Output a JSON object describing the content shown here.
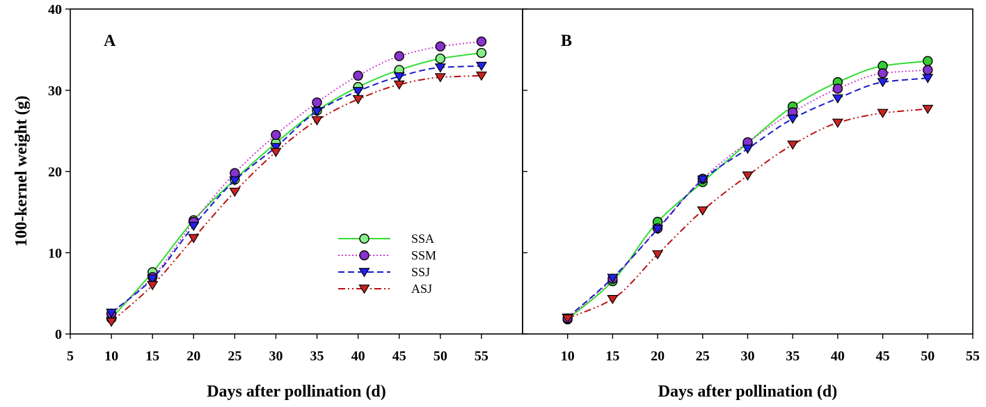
{
  "chart_data": [
    {
      "type": "line",
      "panel_label": "A",
      "xlabel": "Days after pollination (d)",
      "ylabel": "100-kernel weight (g)",
      "xlim": [
        5,
        60
      ],
      "ylim": [
        0,
        40
      ],
      "xticks": [
        5,
        10,
        15,
        20,
        25,
        30,
        35,
        40,
        45,
        50,
        55
      ],
      "yticks": [
        0,
        10,
        20,
        30,
        40
      ],
      "legend_position": "center-right",
      "x": [
        10,
        15,
        20,
        25,
        30,
        35,
        40,
        45,
        50,
        55
      ],
      "series": [
        {
          "name": "SSA",
          "color": "#33dd33",
          "marker_fill": "#88ee88",
          "marker": "circle",
          "dash": "solid",
          "values": [
            1.9,
            7.6,
            14.0,
            19.0,
            23.5,
            27.5,
            30.4,
            32.5,
            33.9,
            34.6
          ]
        },
        {
          "name": "SSM",
          "color": "#cc44cc",
          "marker_fill": "#8833cc",
          "marker": "circle",
          "dash": "dotted",
          "values": [
            2.5,
            7.0,
            13.8,
            19.8,
            24.5,
            28.5,
            31.8,
            34.2,
            35.4,
            36.0
          ]
        },
        {
          "name": "SSJ",
          "color": "#1a1acc",
          "marker_fill": "#2222ee",
          "marker": "triangle-down",
          "dash": "dashed",
          "values": [
            2.6,
            6.8,
            13.3,
            18.9,
            23.0,
            27.4,
            29.9,
            31.7,
            32.8,
            33.0
          ]
        },
        {
          "name": "ASJ",
          "color": "#bb1111",
          "marker_fill": "#cc2222",
          "marker": "triangle-down",
          "dash": "dashdotdot",
          "values": [
            1.5,
            6.0,
            11.8,
            17.5,
            22.4,
            26.3,
            28.9,
            30.7,
            31.6,
            31.8
          ]
        }
      ]
    },
    {
      "type": "line",
      "panel_label": "B",
      "xlabel": "Days after pollination (d)",
      "ylabel": "",
      "xlim": [
        5,
        55
      ],
      "ylim": [
        0,
        40
      ],
      "xticks": [
        10,
        15,
        20,
        25,
        30,
        35,
        40,
        45,
        50,
        55
      ],
      "yticks": [
        0,
        10,
        20,
        30,
        40
      ],
      "x": [
        10,
        15,
        20,
        25,
        30,
        35,
        40,
        45,
        50
      ],
      "series": [
        {
          "name": "SSA",
          "color": "#33dd33",
          "marker_fill": "#33cc33",
          "marker": "circle",
          "dash": "solid",
          "values": [
            1.8,
            6.5,
            13.8,
            18.7,
            23.5,
            28.0,
            31.0,
            33.0,
            33.6
          ]
        },
        {
          "name": "SSM",
          "color": "#cc44cc",
          "marker_fill": "#8833cc",
          "marker": "circle",
          "dash": "dotted",
          "values": [
            1.9,
            6.8,
            13.0,
            19.1,
            23.6,
            27.3,
            30.2,
            32.1,
            32.5
          ]
        },
        {
          "name": "SSJ",
          "color": "#1a1acc",
          "marker_fill": "#2222ee",
          "marker": "triangle-down",
          "dash": "dashed",
          "values": [
            2.0,
            6.9,
            12.9,
            19.0,
            22.8,
            26.5,
            29.0,
            31.0,
            31.5
          ]
        },
        {
          "name": "ASJ",
          "color": "#bb1111",
          "marker_fill": "#cc2222",
          "marker": "triangle-down",
          "dash": "dashdotdot",
          "values": [
            1.9,
            4.3,
            9.8,
            15.2,
            19.5,
            23.3,
            26.0,
            27.2,
            27.7
          ]
        }
      ]
    }
  ]
}
